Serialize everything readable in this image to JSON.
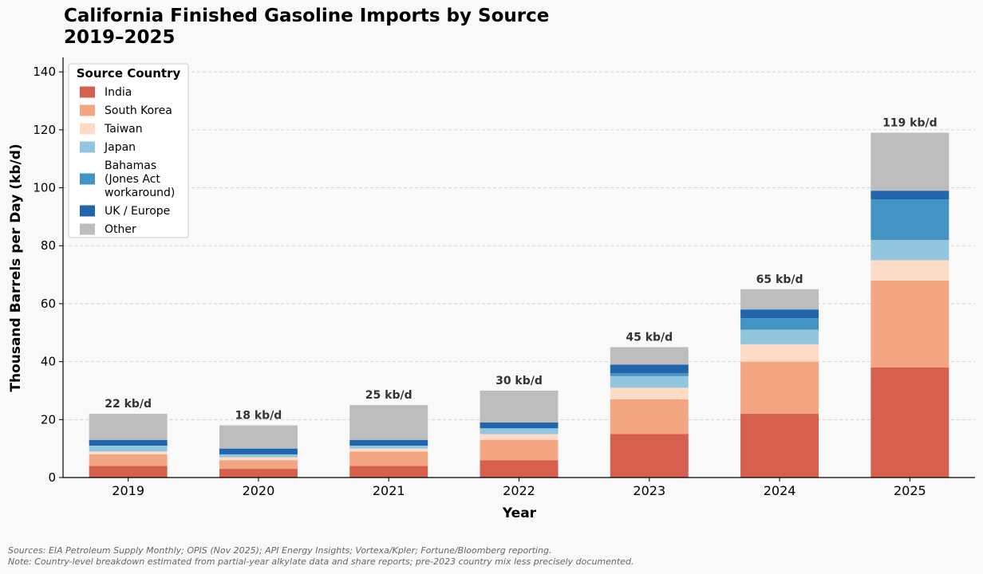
{
  "chart_data": {
    "type": "bar",
    "stacked": true,
    "title_lines": [
      "California Finished Gasoline Imports by Source",
      "2019–2025"
    ],
    "xlabel": "Year",
    "ylabel": "Thousand Barrels per Day (kb/d)",
    "ylim": [
      0,
      145
    ],
    "yticks": [
      "0",
      "20",
      "40",
      "60",
      "80",
      "100",
      "120",
      "140"
    ],
    "categories": [
      "2019",
      "2020",
      "2021",
      "2022",
      "2023",
      "2024",
      "2025"
    ],
    "grid": "horizontal dashed",
    "legend_position": "top-left",
    "legend_title": "Source Country",
    "series": [
      {
        "name": "India",
        "legend_lines": [
          "India"
        ],
        "color": "#d6604d",
        "values": [
          4,
          3,
          4,
          6,
          15,
          22,
          38
        ]
      },
      {
        "name": "South Korea",
        "legend_lines": [
          "South Korea"
        ],
        "color": "#f4a582",
        "values": [
          4,
          3,
          5,
          7,
          12,
          18,
          30
        ]
      },
      {
        "name": "Taiwan",
        "legend_lines": [
          "Taiwan"
        ],
        "color": "#fddbc7",
        "values": [
          1,
          1,
          1,
          2,
          4,
          6,
          7
        ]
      },
      {
        "name": "Japan",
        "legend_lines": [
          "Japan"
        ],
        "color": "#92c5de",
        "values": [
          2,
          1,
          1,
          2,
          4,
          5,
          7
        ]
      },
      {
        "name": "Bahamas (Jones Act workaround)",
        "legend_lines": [
          "Bahamas",
          "(Jones Act",
          "workaround)"
        ],
        "color": "#4393c3",
        "values": [
          0,
          0,
          0,
          0,
          1,
          4,
          14
        ]
      },
      {
        "name": "UK / Europe",
        "legend_lines": [
          "UK / Europe"
        ],
        "color": "#2166ac",
        "values": [
          2,
          2,
          2,
          2,
          3,
          3,
          3
        ]
      },
      {
        "name": "Other",
        "legend_lines": [
          "Other"
        ],
        "color": "#bdbdbd",
        "values": [
          9,
          8,
          12,
          11,
          6,
          7,
          20
        ]
      }
    ],
    "totals": [
      22,
      18,
      25,
      30,
      45,
      65,
      119
    ],
    "total_labels": [
      "22 kb/d",
      "18 kb/d",
      "25 kb/d",
      "30 kb/d",
      "45 kb/d",
      "65 kb/d",
      "119 kb/d"
    ]
  },
  "footer": {
    "sources": "Sources: EIA Petroleum Supply Monthly; OPIS (Nov 2025); API Energy Insights; Vortexa/Kpler; Fortune/Bloomberg reporting.",
    "note": "Note: Country-level breakdown estimated from partial-year alkylate data and share reports; pre-2023 country mix less precisely documented."
  }
}
